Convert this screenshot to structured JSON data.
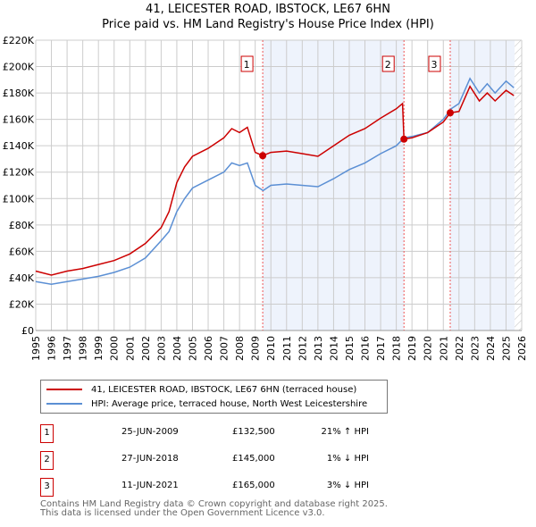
{
  "title_line1": "41, LEICESTER ROAD, IBSTOCK, LE67 6HN",
  "title_line2": "Price paid vs. HM Land Registry's House Price Index (HPI)",
  "chart_data": {
    "type": "line",
    "title": "Price paid vs. HM Land Registry's House Price Index (HPI)",
    "xlim": [
      1995,
      2026
    ],
    "ylim": [
      0,
      220000
    ],
    "yticks": [
      0,
      20000,
      40000,
      60000,
      80000,
      100000,
      120000,
      140000,
      160000,
      180000,
      200000,
      220000
    ],
    "ytick_labels": [
      "£0",
      "£20K",
      "£40K",
      "£60K",
      "£80K",
      "£100K",
      "£120K",
      "£140K",
      "£160K",
      "£180K",
      "£200K",
      "£220K"
    ],
    "xticks": [
      "1995",
      "1996",
      "1997",
      "1998",
      "1999",
      "2000",
      "2001",
      "2002",
      "2003",
      "2004",
      "2005",
      "2006",
      "2007",
      "2008",
      "2009",
      "2010",
      "2011",
      "2012",
      "2013",
      "2014",
      "2015",
      "2016",
      "2017",
      "2018",
      "2019",
      "2020",
      "2021",
      "2022",
      "2023",
      "2024",
      "2025",
      "2026"
    ],
    "grid": true,
    "colors": {
      "property": "#cc0000",
      "hpi": "#5b8fd4",
      "shade": "#eef3fc"
    },
    "series": [
      {
        "name": "41, LEICESTER ROAD, IBSTOCK, LE67 6HN (terraced house)",
        "x": [
          1995,
          1996,
          1997,
          1998,
          1999,
          2000,
          2001,
          2002,
          2003,
          2003.5,
          2004,
          2004.5,
          2005,
          2006,
          2007,
          2007.5,
          2008,
          2008.5,
          2009,
          2009.48,
          2010,
          2011,
          2012,
          2013,
          2014,
          2015,
          2016,
          2017,
          2018,
          2018.4,
          2018.49,
          2019,
          2020,
          2021,
          2021.44,
          2022,
          2022.7,
          2023.3,
          2023.8,
          2024.3,
          2025,
          2025.5
        ],
        "y": [
          45000,
          42000,
          45000,
          47000,
          50000,
          53000,
          58000,
          66000,
          78000,
          90000,
          112000,
          124000,
          132000,
          138000,
          146000,
          153000,
          150000,
          154000,
          135000,
          132500,
          135000,
          136000,
          134000,
          132000,
          140000,
          148000,
          153000,
          161000,
          168000,
          172000,
          145000,
          146000,
          150000,
          158000,
          165000,
          166000,
          185000,
          174000,
          180000,
          174000,
          182000,
          178000
        ]
      },
      {
        "name": "HPI: Average price, terraced house, North West Leicestershire",
        "x": [
          1995,
          1996,
          1997,
          1998,
          1999,
          2000,
          2001,
          2002,
          2003,
          2003.5,
          2004,
          2004.5,
          2005,
          2006,
          2007,
          2007.5,
          2008,
          2008.5,
          2009,
          2009.5,
          2010,
          2011,
          2012,
          2013,
          2014,
          2015,
          2016,
          2017,
          2018,
          2018.5,
          2019,
          2020,
          2021,
          2021.5,
          2022,
          2022.7,
          2023.3,
          2023.8,
          2024.3,
          2025,
          2025.5
        ],
        "y": [
          37000,
          35000,
          37000,
          39000,
          41000,
          44000,
          48000,
          55000,
          68000,
          75000,
          90000,
          100000,
          108000,
          114000,
          120000,
          127000,
          125000,
          127000,
          110000,
          106000,
          110000,
          111000,
          110000,
          109000,
          115000,
          122000,
          127000,
          134000,
          140000,
          146000,
          147000,
          150000,
          160000,
          168000,
          172000,
          191000,
          180000,
          187000,
          180000,
          189000,
          184000
        ]
      }
    ],
    "sales": [
      {
        "label": "1",
        "x": 2009.48,
        "y": 132500
      },
      {
        "label": "2",
        "x": 2018.49,
        "y": 145000
      },
      {
        "label": "3",
        "x": 2021.44,
        "y": 165000
      }
    ]
  },
  "legend": {
    "property": "41, LEICESTER ROAD, IBSTOCK, LE67 6HN (terraced house)",
    "hpi": "HPI: Average price, terraced house, North West Leicestershire"
  },
  "transactions": [
    {
      "num": "1",
      "date": "25-JUN-2009",
      "price": "£132,500",
      "hpi": "21% ↑ HPI"
    },
    {
      "num": "2",
      "date": "27-JUN-2018",
      "price": "£145,000",
      "hpi": "1% ↓ HPI"
    },
    {
      "num": "3",
      "date": "11-JUN-2021",
      "price": "£165,000",
      "hpi": "3% ↓ HPI"
    }
  ],
  "footer": {
    "line1": "Contains HM Land Registry data © Crown copyright and database right 2025.",
    "line2": "This data is licensed under the Open Government Licence v3.0."
  }
}
